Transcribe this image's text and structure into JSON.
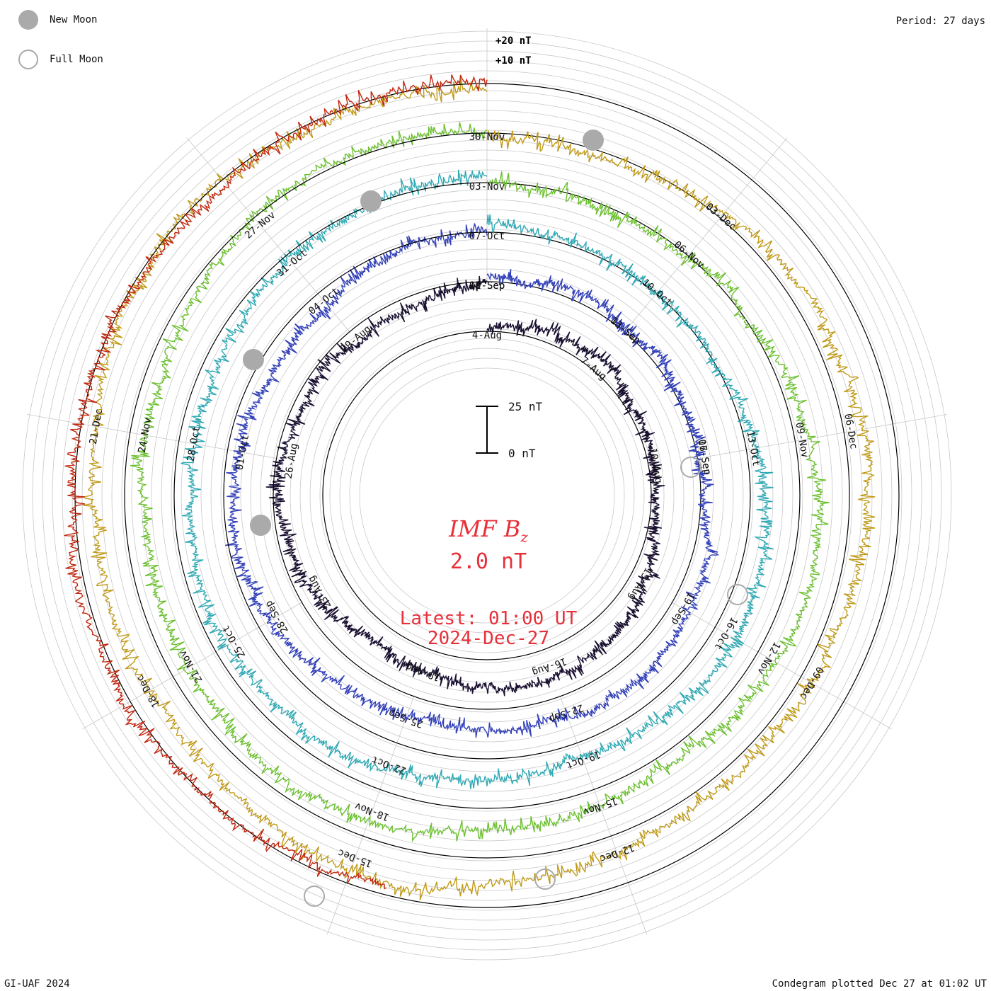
{
  "legend": {
    "new_moon": "New Moon",
    "full_moon": "Full Moon"
  },
  "period": "Period: 27 days",
  "footer": {
    "credit": "GI-UAF 2024",
    "plotted": "Condegram plotted Dec 27 at 01:02 UT"
  },
  "center": {
    "title_main": "IMF B",
    "title_sub": "z",
    "value": "2.0 nT",
    "latest": "Latest: 01:00 UT",
    "date": "2024-Dec-27"
  },
  "colors": {
    "title": "#e8303a",
    "grid": "#c8c8c8",
    "moon": "#aaaaaa"
  },
  "chart_data": {
    "type": "condegram",
    "title": "IMF Bz",
    "units": "nT",
    "period_days": 27,
    "scale_bar": {
      "top_label": "25 nT",
      "bottom_label": "0 nT"
    },
    "scale_labels": [
      "+20 nT",
      "+10 nT"
    ],
    "rings": [
      {
        "color": "#1a1030",
        "dates": [
          "4-Aug",
          "7-Aug",
          "10-Aug",
          "13-Aug",
          "16-Aug",
          "19-Aug",
          "23-Aug",
          "26-Aug",
          "29-Aug",
          "01-Sep",
          "04-Sep",
          "07-Sep"
        ]
      },
      {
        "color": "#3341b8",
        "dates": [
          "10-Sep",
          "13-Sep",
          "16-Sep",
          "19-Sep",
          "22-Sep",
          "25-Sep",
          "28-Sep",
          "01-Oct",
          "04-Oct"
        ]
      },
      {
        "color": "#2fa9b4",
        "dates": [
          "07-Oct",
          "10-Oct",
          "13-Oct",
          "16-Oct",
          "19-Oct",
          "22-Oct",
          "25-Oct",
          "28-Oct",
          "31-Oct"
        ]
      },
      {
        "color": "#6cc030",
        "dates": [
          "03-Nov",
          "06-Nov",
          "09-Nov",
          "12-Nov",
          "15-Nov",
          "18-Nov",
          "21-Nov",
          "24-Nov",
          "27-Nov"
        ]
      },
      {
        "color": "#c09a18",
        "dates": [
          "30-Nov",
          "03-Dec",
          "06-Dec",
          "09-Dec",
          "12-Dec",
          "15-Dec",
          "18-Dec",
          "21-Dec"
        ]
      },
      {
        "color": "#c02810",
        "dates": []
      }
    ]
  }
}
